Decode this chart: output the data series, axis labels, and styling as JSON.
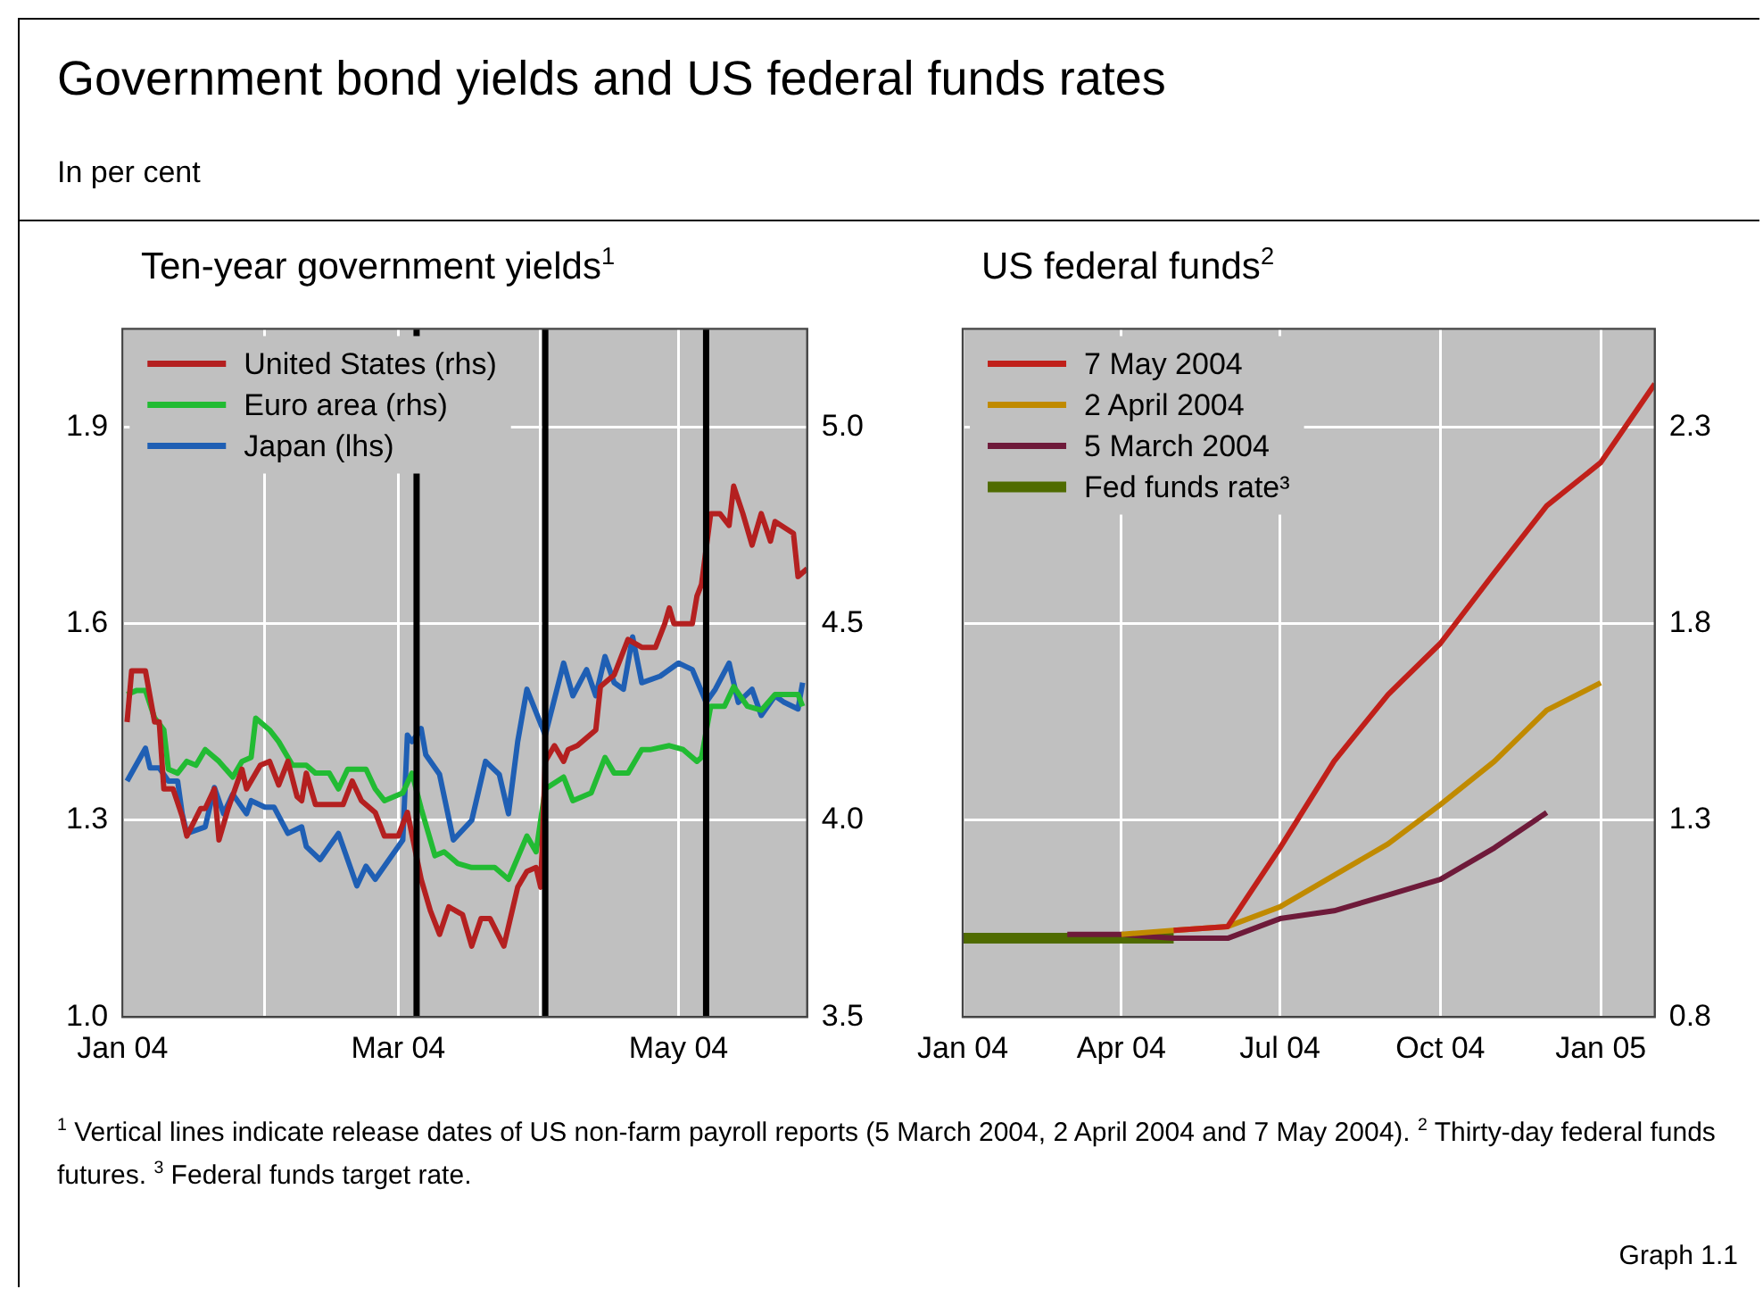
{
  "chart_data": [
    {
      "type": "other",
      "title": "Government bond yields and US federal funds rates",
      "subtitle": "In per cent",
      "annotations": [
        "$^{1}$ Vertical lines indicate release dates of US non-farm payroll reports (5 March 2004, 2 April 2004 and 7 May 2004).  $^{2}$ Thirty-day federal funds futures.  $^{3}$ Federal funds target rate.",
        "Graph 1.1"
      ]
    },
    {
      "type": "line",
      "title": "Ten-year government yields$^{1}$",
      "marker": "none",
      "grid": true,
      "legend": "top left",
      "xlim": [
        "2004-01-01",
        "2004-05-29"
      ],
      "xticks": [
        {
          "value": "2004-01-01",
          "label": "Jan 04"
        },
        {
          "value": "2004-02-01",
          "label": null
        },
        {
          "value": "2004-03-01",
          "label": "Mar 04"
        },
        {
          "value": "2004-04-01",
          "label": null
        },
        {
          "value": "2004-05-01",
          "label": "May 04"
        }
      ],
      "ylim": [
        1.0,
        2.05
      ],
      "yticks": [
        {
          "value": 1,
          "label": "1.0"
        },
        1.3,
        1.6,
        1.9
      ],
      "y2lim": [
        3.5,
        5.25
      ],
      "y2ticks": [
        3.5,
        {
          "value": 4,
          "label": "4.0"
        },
        4.5,
        {
          "value": 5,
          "label": "5.0"
        }
      ],
      "ref_lines": [
        {
          "axis": "x",
          "value": "2004-03-05",
          "color": "#000000"
        },
        {
          "axis": "x",
          "value": "2004-04-02",
          "color": "#000000"
        },
        {
          "axis": "x",
          "value": "2004-05-07",
          "color": "#000000"
        }
      ],
      "series": [
        {
          "name": "United States (rhs)",
          "color": "#b42020",
          "axis": "y2",
          "x": [
            "2004-01-02",
            "2004-01-03",
            "2004-01-06",
            "2004-01-08",
            "2004-01-09",
            "2004-01-10",
            "2004-01-12",
            "2004-01-14",
            "2004-01-15",
            "2004-01-18",
            "2004-01-19",
            "2004-01-21",
            "2004-01-22",
            "2004-01-24",
            "2004-01-27",
            "2004-01-28",
            "2004-01-31",
            "2004-02-02",
            "2004-02-04",
            "2004-02-06",
            "2004-02-08",
            "2004-02-09",
            "2004-02-10",
            "2004-02-12",
            "2004-02-15",
            "2004-02-18",
            "2004-02-20",
            "2004-02-22",
            "2004-02-25",
            "2004-02-27",
            "2004-03-01",
            "2004-03-03",
            "2004-03-06",
            "2004-03-08",
            "2004-03-10",
            "2004-03-12",
            "2004-03-15",
            "2004-03-17",
            "2004-03-19",
            "2004-03-21",
            "2004-03-24",
            "2004-03-25",
            "2004-03-27",
            "2004-03-29",
            "2004-03-31",
            "2004-04-01",
            "2004-04-02",
            "2004-04-04",
            "2004-04-06",
            "2004-04-07",
            "2004-04-09",
            "2004-04-13",
            "2004-04-14",
            "2004-04-15",
            "2004-04-17",
            "2004-04-20",
            "2004-04-23",
            "2004-04-26",
            "2004-04-28",
            "2004-04-29",
            "2004-04-30",
            "2004-05-04",
            "2004-05-05",
            "2004-05-06",
            "2004-05-08",
            "2004-05-10",
            "2004-05-12",
            "2004-05-13",
            "2004-05-15",
            "2004-05-17",
            "2004-05-19",
            "2004-05-21",
            "2004-05-22",
            "2004-05-26",
            "2004-05-27",
            "2004-05-29"
          ],
          "values": [
            4.25,
            4.38,
            4.38,
            4.25,
            4.25,
            4.08,
            4.08,
            4.01,
            3.96,
            4.03,
            4.03,
            4.08,
            3.95,
            4.03,
            4.13,
            4.08,
            4.14,
            4.15,
            4.09,
            4.15,
            4.06,
            4.05,
            4.12,
            4.04,
            4.04,
            4.04,
            4.1,
            4.05,
            4.02,
            3.96,
            3.96,
            4.02,
            3.85,
            3.77,
            3.71,
            3.78,
            3.76,
            3.68,
            3.75,
            3.75,
            3.68,
            3.73,
            3.83,
            3.87,
            3.88,
            3.83,
            4.15,
            4.19,
            4.15,
            4.18,
            4.19,
            4.23,
            4.34,
            4.35,
            4.37,
            4.46,
            4.44,
            4.44,
            4.5,
            4.54,
            4.5,
            4.5,
            4.57,
            4.6,
            4.78,
            4.78,
            4.75,
            4.85,
            4.78,
            4.7,
            4.78,
            4.71,
            4.76,
            4.73,
            4.62,
            4.64
          ]
        },
        {
          "name": "Euro area (rhs)",
          "color": "#22bb33",
          "axis": "y2",
          "x": [
            "2004-01-02",
            "2004-01-04",
            "2004-01-06",
            "2004-01-08",
            "2004-01-10",
            "2004-01-11",
            "2004-01-13",
            "2004-01-15",
            "2004-01-17",
            "2004-01-19",
            "2004-01-22",
            "2004-01-25",
            "2004-01-27",
            "2004-01-29",
            "2004-01-30",
            "2004-02-02",
            "2004-02-04",
            "2004-02-07",
            "2004-02-10",
            "2004-02-12",
            "2004-02-15",
            "2004-02-17",
            "2004-02-19",
            "2004-02-23",
            "2004-02-25",
            "2004-02-27",
            "2004-03-02",
            "2004-03-04",
            "2004-03-06",
            "2004-03-09",
            "2004-03-11",
            "2004-03-14",
            "2004-03-17",
            "2004-03-19",
            "2004-03-22",
            "2004-03-25",
            "2004-03-29",
            "2004-03-31",
            "2004-04-02",
            "2004-04-06",
            "2004-04-08",
            "2004-04-12",
            "2004-04-15",
            "2004-04-17",
            "2004-04-20",
            "2004-04-23",
            "2004-04-25",
            "2004-04-29",
            "2004-05-02",
            "2004-05-05",
            "2004-05-06",
            "2004-05-08",
            "2004-05-11",
            "2004-05-13",
            "2004-05-16",
            "2004-05-19",
            "2004-05-22",
            "2004-05-24",
            "2004-05-27",
            "2004-05-28"
          ],
          "values": [
            4.32,
            4.33,
            4.33,
            4.26,
            4.23,
            4.13,
            4.12,
            4.15,
            4.14,
            4.18,
            4.15,
            4.11,
            4.15,
            4.16,
            4.26,
            4.23,
            4.2,
            4.14,
            4.14,
            4.12,
            4.12,
            4.08,
            4.13,
            4.13,
            4.08,
            4.05,
            4.07,
            4.12,
            4.03,
            3.91,
            3.92,
            3.89,
            3.88,
            3.88,
            3.88,
            3.85,
            3.96,
            3.92,
            4.08,
            4.11,
            4.05,
            4.07,
            4.16,
            4.12,
            4.12,
            4.18,
            4.18,
            4.19,
            4.18,
            4.15,
            4.16,
            4.29,
            4.29,
            4.34,
            4.29,
            4.28,
            4.32,
            4.32,
            4.32,
            4.29
          ]
        },
        {
          "name": "Japan (lhs)",
          "color": "#1f5fb4",
          "x": [
            "2004-01-02",
            "2004-01-06",
            "2004-01-07",
            "2004-01-09",
            "2004-01-11",
            "2004-01-13",
            "2004-01-14",
            "2004-01-15",
            "2004-01-19",
            "2004-01-21",
            "2004-01-23",
            "2004-01-25",
            "2004-01-28",
            "2004-01-29",
            "2004-02-01",
            "2004-02-03",
            "2004-02-06",
            "2004-02-09",
            "2004-02-10",
            "2004-02-13",
            "2004-02-15",
            "2004-02-17",
            "2004-02-21",
            "2004-02-23",
            "2004-02-25",
            "2004-02-28",
            "2004-03-02",
            "2004-03-03",
            "2004-03-04",
            "2004-03-06",
            "2004-03-07",
            "2004-03-10",
            "2004-03-13",
            "2004-03-17",
            "2004-03-20",
            "2004-03-23",
            "2004-03-25",
            "2004-03-27",
            "2004-03-29",
            "2004-04-02",
            "2004-04-06",
            "2004-04-08",
            "2004-04-11",
            "2004-04-13",
            "2004-04-15",
            "2004-04-17",
            "2004-04-19",
            "2004-04-21",
            "2004-04-23",
            "2004-04-27",
            "2004-05-01",
            "2004-05-04",
            "2004-05-07",
            "2004-05-09",
            "2004-05-12",
            "2004-05-14",
            "2004-05-17",
            "2004-05-19",
            "2004-05-22",
            "2004-05-24",
            "2004-05-27",
            "2004-05-28"
          ],
          "values": [
            1.36,
            1.41,
            1.38,
            1.38,
            1.36,
            1.36,
            1.31,
            1.28,
            1.29,
            1.35,
            1.31,
            1.34,
            1.31,
            1.33,
            1.32,
            1.32,
            1.28,
            1.29,
            1.26,
            1.24,
            1.26,
            1.28,
            1.2,
            1.23,
            1.21,
            1.24,
            1.27,
            1.43,
            1.42,
            1.44,
            1.4,
            1.37,
            1.27,
            1.3,
            1.39,
            1.37,
            1.31,
            1.42,
            1.5,
            1.43,
            1.54,
            1.49,
            1.53,
            1.49,
            1.55,
            1.51,
            1.5,
            1.58,
            1.51,
            1.52,
            1.54,
            1.53,
            1.48,
            1.5,
            1.54,
            1.48,
            1.5,
            1.46,
            1.49,
            1.48,
            1.47,
            1.51
          ]
        }
      ]
    },
    {
      "type": "line",
      "title": "US federal funds$^{2}$",
      "marker": "none",
      "grid": true,
      "legend": "top left",
      "xlim": [
        "2004-01-01",
        "2005-02-01"
      ],
      "xticks": [
        {
          "value": "2004-01-01",
          "label": "Jan 04"
        },
        {
          "value": "2004-04-01",
          "label": "Apr 04"
        },
        {
          "value": "2004-07-01",
          "label": "Jul 04"
        },
        {
          "value": "2004-10-01",
          "label": "Oct 04"
        },
        {
          "value": "2005-01-01",
          "label": "Jan 05"
        }
      ],
      "ylim": [
        0.8,
        2.55
      ],
      "yticks": [
        0.8,
        1.3,
        1.8,
        2.3
      ],
      "series": [
        {
          "name": "7 May 2004",
          "color": "#c0201a",
          "x": [
            "2004-05-01",
            "2004-06-01",
            "2004-07-01",
            "2004-08-01",
            "2004-09-01",
            "2004-10-01",
            "2004-11-01",
            "2004-12-01",
            "2005-01-01",
            "2005-02-01"
          ],
          "values": [
            1.02,
            1.03,
            1.23,
            1.45,
            1.62,
            1.75,
            1.93,
            2.1,
            2.21,
            2.41
          ]
        },
        {
          "name": "2 April 2004",
          "color": "#c08a00",
          "x": [
            "2004-04-01",
            "2004-05-01",
            "2004-06-01",
            "2004-07-01",
            "2004-08-01",
            "2004-09-01",
            "2004-10-01",
            "2004-11-01",
            "2004-12-01",
            "2005-01-01"
          ],
          "values": [
            1.01,
            1.02,
            1.03,
            1.08,
            1.16,
            1.24,
            1.34,
            1.45,
            1.58,
            1.65
          ]
        },
        {
          "name": "5 March 2004",
          "color": "#6e1a3a",
          "x": [
            "2004-03-01",
            "2004-04-01",
            "2004-05-01",
            "2004-06-01",
            "2004-07-01",
            "2004-08-01",
            "2004-09-01",
            "2004-10-01",
            "2004-11-01",
            "2004-12-01"
          ],
          "values": [
            1.01,
            1.01,
            1.0,
            1.0,
            1.05,
            1.07,
            1.11,
            1.15,
            1.23,
            1.32
          ]
        },
        {
          "name": "Fed funds rate³",
          "color": "#4f6b00",
          "x": [
            "2004-01-01",
            "2004-05-01"
          ],
          "values": [
            1.0,
            1.0
          ]
        }
      ]
    }
  ]
}
